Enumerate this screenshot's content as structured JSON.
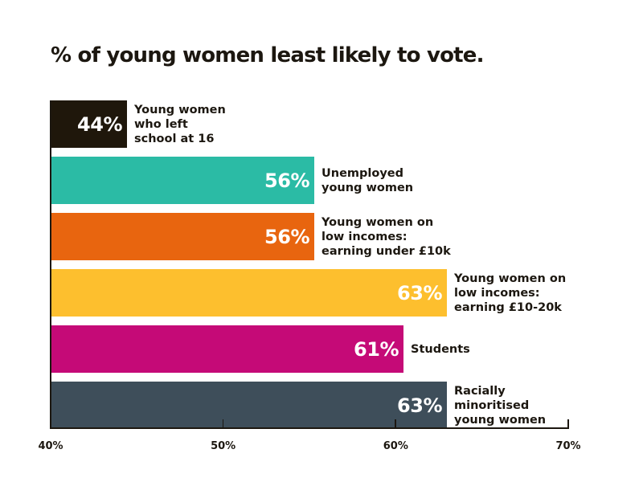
{
  "chart_data": {
    "type": "bar",
    "orientation": "horizontal",
    "title": "% of young women least likely to vote.",
    "xlabel": "",
    "ylabel": "",
    "xlim": [
      40,
      70
    ],
    "xticks": [
      40,
      50,
      60,
      70
    ],
    "xtick_labels": [
      "40%",
      "50%",
      "60%",
      "70%"
    ],
    "grid": false,
    "categories": [
      "Young women\nwho left\nschool at 16",
      "Unemployed\nyoung women",
      "Young women on\nlow incomes:\nearning under £10k",
      "Young women on\nlow incomes:\nearning £10-20k",
      "Students",
      "Racially\nminoritised\nyoung women"
    ],
    "values": [
      44,
      56,
      56,
      63,
      61,
      63
    ],
    "value_labels": [
      "44%",
      "56%",
      "56%",
      "63%",
      "61%",
      "63%"
    ],
    "colors": [
      "#1f170b",
      "#2bbba5",
      "#e8650f",
      "#fdbf2e",
      "#c50a77",
      "#3e4e5a"
    ]
  }
}
